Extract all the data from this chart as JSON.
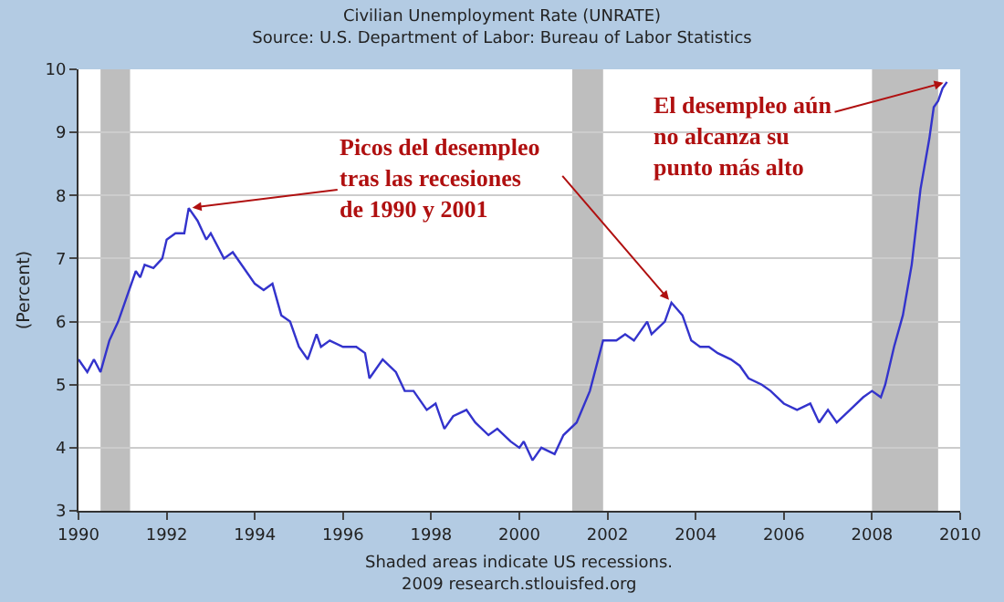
{
  "chart_data": {
    "type": "line",
    "title": "Civilian Unemployment Rate (UNRATE)",
    "subtitle": "Source: U.S. Department of Labor: Bureau of Labor Statistics",
    "ylabel": "(Percent)",
    "x": [
      1990.0,
      1990.2,
      1990.35,
      1990.5,
      1990.7,
      1990.9,
      1991.1,
      1991.3,
      1991.4,
      1991.5,
      1991.7,
      1991.9,
      1992.0,
      1992.2,
      1992.4,
      1992.5,
      1992.7,
      1992.9,
      1993.0,
      1993.3,
      1993.5,
      1993.8,
      1994.0,
      1994.2,
      1994.4,
      1994.6,
      1994.8,
      1995.0,
      1995.2,
      1995.4,
      1995.5,
      1995.7,
      1996.0,
      1996.3,
      1996.5,
      1996.6,
      1996.9,
      1997.2,
      1997.4,
      1997.6,
      1997.9,
      1998.1,
      1998.3,
      1998.5,
      1998.8,
      1999.0,
      1999.3,
      1999.5,
      1999.8,
      2000.0,
      2000.1,
      2000.3,
      2000.5,
      2000.8,
      2001.0,
      2001.3,
      2001.6,
      2001.9,
      2002.2,
      2002.4,
      2002.6,
      2002.9,
      2003.0,
      2003.3,
      2003.45,
      2003.7,
      2003.9,
      2004.1,
      2004.3,
      2004.5,
      2004.8,
      2005.0,
      2005.2,
      2005.5,
      2005.7,
      2006.0,
      2006.3,
      2006.6,
      2006.8,
      2007.0,
      2007.2,
      2007.5,
      2007.8,
      2008.0,
      2008.2,
      2008.3,
      2008.5,
      2008.7,
      2008.9,
      2009.1,
      2009.3,
      2009.4,
      2009.5,
      2009.6,
      2009.7
    ],
    "series": [
      {
        "color": "#3333cc",
        "values": [
          5.4,
          5.2,
          5.4,
          5.2,
          5.7,
          6.0,
          6.4,
          6.8,
          6.7,
          6.9,
          6.85,
          7.0,
          7.3,
          7.4,
          7.4,
          7.8,
          7.6,
          7.3,
          7.4,
          7.0,
          7.1,
          6.8,
          6.6,
          6.5,
          6.6,
          6.1,
          6.0,
          5.6,
          5.4,
          5.8,
          5.6,
          5.7,
          5.6,
          5.6,
          5.5,
          5.1,
          5.4,
          5.2,
          4.9,
          4.9,
          4.6,
          4.7,
          4.3,
          4.5,
          4.6,
          4.4,
          4.2,
          4.3,
          4.1,
          4.0,
          4.1,
          3.8,
          4.0,
          3.9,
          4.2,
          4.4,
          4.9,
          5.7,
          5.7,
          5.8,
          5.7,
          6.0,
          5.8,
          6.0,
          6.3,
          6.1,
          5.7,
          5.6,
          5.6,
          5.5,
          5.4,
          5.3,
          5.1,
          5.0,
          4.9,
          4.7,
          4.6,
          4.7,
          4.4,
          4.6,
          4.4,
          4.6,
          4.8,
          4.9,
          4.8,
          5.0,
          5.6,
          6.1,
          6.9,
          8.1,
          8.9,
          9.4,
          9.5,
          9.7,
          9.8
        ]
      }
    ],
    "xlim": [
      1990,
      2010
    ],
    "xticks": [
      1990,
      1992,
      1994,
      1996,
      1998,
      2000,
      2002,
      2004,
      2006,
      2008,
      2010
    ],
    "ylim": [
      3,
      10
    ],
    "yticks": [
      3,
      4,
      5,
      6,
      7,
      8,
      9,
      10
    ],
    "grid": "y",
    "bands": [
      {
        "axis": "x",
        "from": 1990.5,
        "to": 1991.17,
        "color": "#bebebe"
      },
      {
        "axis": "x",
        "from": 2001.2,
        "to": 2001.9,
        "color": "#bebebe"
      },
      {
        "axis": "x",
        "from": 2008.0,
        "to": 2009.5,
        "color": "#bebebe"
      }
    ],
    "annotations": [
      {
        "text": "Picos del desempleo\ntras las recesiones\nde 1990 y 2001",
        "x": 1992.5,
        "y": 7.8
      },
      {
        "text": "El desempleo aún\nno alcanza su\npunto más alto",
        "x": 2009.7,
        "y": 9.8
      },
      "Shaded areas indicate US recessions.",
      "2009 research.stlouisfed.org"
    ]
  }
}
